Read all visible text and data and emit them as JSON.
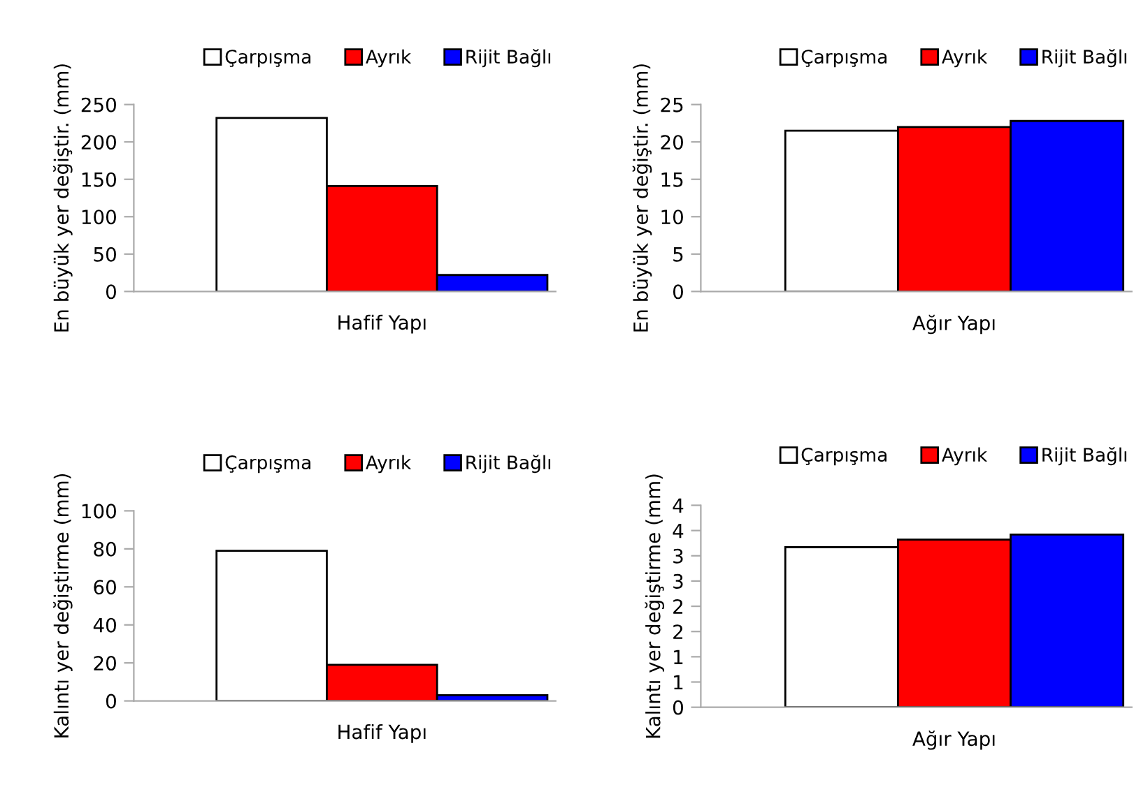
{
  "chart_data": [
    {
      "type": "bar",
      "categories": [
        "Hafif Yapı"
      ],
      "ylabel": "En büyük yer değiştir. (mm)",
      "ylim": [
        0,
        250
      ],
      "yticks": [
        0,
        50,
        100,
        150,
        200,
        250
      ],
      "legend": "top",
      "grid": false,
      "series": [
        {
          "name": "Çarpışma",
          "color": "#ffffff",
          "values": [
            232
          ]
        },
        {
          "name": "Ayrık",
          "color": "#ff0000",
          "values": [
            141
          ]
        },
        {
          "name": "Rijit Bağlı",
          "color": "#0000ff",
          "values": [
            22
          ]
        }
      ]
    },
    {
      "type": "bar",
      "categories": [
        "Ağır Yapı"
      ],
      "ylabel": "En büyük yer değiştir. (mm)",
      "ylim": [
        0,
        25
      ],
      "yticks": [
        0,
        5,
        10,
        15,
        20,
        25
      ],
      "legend": "top",
      "grid": false,
      "series": [
        {
          "name": "Çarpışma",
          "color": "#ffffff",
          "values": [
            21.5
          ]
        },
        {
          "name": "Ayrık",
          "color": "#ff0000",
          "values": [
            22.0
          ]
        },
        {
          "name": "Rijit Bağlı",
          "color": "#0000ff",
          "values": [
            22.8
          ]
        }
      ]
    },
    {
      "type": "bar",
      "categories": [
        "Hafif Yapı"
      ],
      "ylabel": "Kalıntı yer değiştirme (mm)",
      "ylim": [
        0,
        100
      ],
      "yticks": [
        0,
        20,
        40,
        60,
        80,
        100
      ],
      "legend": "top",
      "grid": false,
      "series": [
        {
          "name": "Çarpışma",
          "color": "#ffffff",
          "values": [
            79
          ]
        },
        {
          "name": "Ayrık",
          "color": "#ff0000",
          "values": [
            19
          ]
        },
        {
          "name": "Rijit Bağlı",
          "color": "#0000ff",
          "values": [
            3
          ]
        }
      ]
    },
    {
      "type": "bar",
      "categories": [
        "Ağır Yapı"
      ],
      "ylabel": "Kalıntı yer değiştirme (mm)",
      "ylim": [
        0,
        4
      ],
      "yticks": [
        0,
        {
          "value": 0.5,
          "label": "1"
        },
        1,
        {
          "value": 1.5,
          "label": "2"
        },
        2,
        {
          "value": 2.5,
          "label": "3"
        },
        3,
        {
          "value": 3.5,
          "label": "4"
        },
        4
      ],
      "legend": "top",
      "grid": false,
      "series": [
        {
          "name": "Çarpışma",
          "color": "#ffffff",
          "values": [
            3.17
          ]
        },
        {
          "name": "Ayrık",
          "color": "#ff0000",
          "values": [
            3.32
          ]
        },
        {
          "name": "Rijit Bağlı",
          "color": "#0000ff",
          "values": [
            3.42
          ]
        }
      ]
    }
  ]
}
